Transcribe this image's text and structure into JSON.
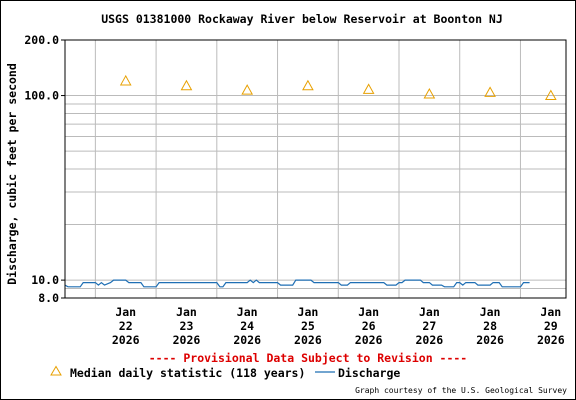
{
  "chart_data": {
    "type": "line",
    "title": "USGS 01381000 Rockaway River below Reservoir at Boonton NJ",
    "ylabel": "Discharge, cubic feet per second",
    "yscale": "log",
    "ylim": [
      8.0,
      200.0
    ],
    "y_tick_labels": [
      {
        "value": 200.0,
        "label": "200.0"
      },
      {
        "value": 100.0,
        "label": "100.0"
      },
      {
        "value": 10.0,
        "label": "10.0"
      },
      {
        "value": 8.0,
        "label": "8.0"
      }
    ],
    "xlim": [
      21.5,
      29.75
    ],
    "x_ticks": [
      {
        "value": 22,
        "month": "Jan",
        "day": "22",
        "year": "2026"
      },
      {
        "value": 23,
        "month": "Jan",
        "day": "23",
        "year": "2026"
      },
      {
        "value": 24,
        "month": "Jan",
        "day": "24",
        "year": "2026"
      },
      {
        "value": 25,
        "month": "Jan",
        "day": "25",
        "year": "2026"
      },
      {
        "value": 26,
        "month": "Jan",
        "day": "26",
        "year": "2026"
      },
      {
        "value": 27,
        "month": "Jan",
        "day": "27",
        "year": "2026"
      },
      {
        "value": 28,
        "month": "Jan",
        "day": "28",
        "year": "2026"
      },
      {
        "value": 29,
        "month": "Jan",
        "day": "29",
        "year": "2026"
      }
    ],
    "median": {
      "name": "Median daily statistic (118 years)",
      "color": "#e8a000",
      "points": [
        {
          "x": 22.5,
          "y": 120
        },
        {
          "x": 23.5,
          "y": 113
        },
        {
          "x": 24.5,
          "y": 107
        },
        {
          "x": 25.5,
          "y": 113
        },
        {
          "x": 26.5,
          "y": 108
        },
        {
          "x": 27.5,
          "y": 102
        },
        {
          "x": 28.5,
          "y": 104
        },
        {
          "x": 29.5,
          "y": 100
        }
      ]
    },
    "discharge": {
      "name": "Discharge",
      "color": "#1f6fb4",
      "points": [
        [
          21.5,
          9.4
        ],
        [
          21.55,
          9.2
        ],
        [
          21.75,
          9.2
        ],
        [
          21.8,
          9.7
        ],
        [
          22.0,
          9.7
        ],
        [
          22.05,
          9.4
        ],
        [
          22.1,
          9.7
        ],
        [
          22.15,
          9.4
        ],
        [
          22.25,
          9.7
        ],
        [
          22.3,
          10.0
        ],
        [
          22.5,
          10.0
        ],
        [
          22.55,
          9.7
        ],
        [
          22.75,
          9.7
        ],
        [
          22.8,
          9.2
        ],
        [
          23.0,
          9.2
        ],
        [
          23.05,
          9.7
        ],
        [
          24.0,
          9.7
        ],
        [
          24.05,
          9.2
        ],
        [
          24.1,
          9.2
        ],
        [
          24.15,
          9.7
        ],
        [
          24.5,
          9.7
        ],
        [
          24.55,
          10.0
        ],
        [
          24.6,
          9.7
        ],
        [
          24.65,
          10.0
        ],
        [
          24.7,
          9.7
        ],
        [
          25.0,
          9.7
        ],
        [
          25.05,
          9.4
        ],
        [
          25.25,
          9.4
        ],
        [
          25.3,
          10.0
        ],
        [
          25.55,
          10.0
        ],
        [
          25.6,
          9.7
        ],
        [
          26.0,
          9.7
        ],
        [
          26.05,
          9.4
        ],
        [
          26.15,
          9.4
        ],
        [
          26.2,
          9.7
        ],
        [
          26.75,
          9.7
        ],
        [
          26.8,
          9.4
        ],
        [
          26.95,
          9.4
        ],
        [
          27.0,
          9.7
        ],
        [
          27.05,
          9.7
        ],
        [
          27.1,
          10.0
        ],
        [
          27.35,
          10.0
        ],
        [
          27.4,
          9.7
        ],
        [
          27.5,
          9.7
        ],
        [
          27.55,
          9.4
        ],
        [
          27.7,
          9.4
        ],
        [
          27.75,
          9.2
        ],
        [
          27.9,
          9.2
        ],
        [
          27.95,
          9.7
        ],
        [
          28.0,
          9.7
        ],
        [
          28.05,
          9.4
        ],
        [
          28.1,
          9.7
        ],
        [
          28.25,
          9.7
        ],
        [
          28.3,
          9.4
        ],
        [
          28.5,
          9.4
        ],
        [
          28.55,
          9.7
        ],
        [
          28.65,
          9.7
        ],
        [
          28.7,
          9.2
        ],
        [
          29.0,
          9.2
        ],
        [
          29.05,
          9.7
        ],
        [
          29.15,
          9.7
        ]
      ]
    },
    "provisional_notice": "---- Provisional Data Subject to Revision ----",
    "legend": {
      "placement": "bottom",
      "median_label": "Median daily statistic (118 years)",
      "discharge_label": "Discharge"
    },
    "credit": "Graph courtesy of the U.S. Geological Survey",
    "grid": true,
    "colors": {
      "notice": "#dd0000",
      "grid": "#bbbbbb"
    }
  }
}
